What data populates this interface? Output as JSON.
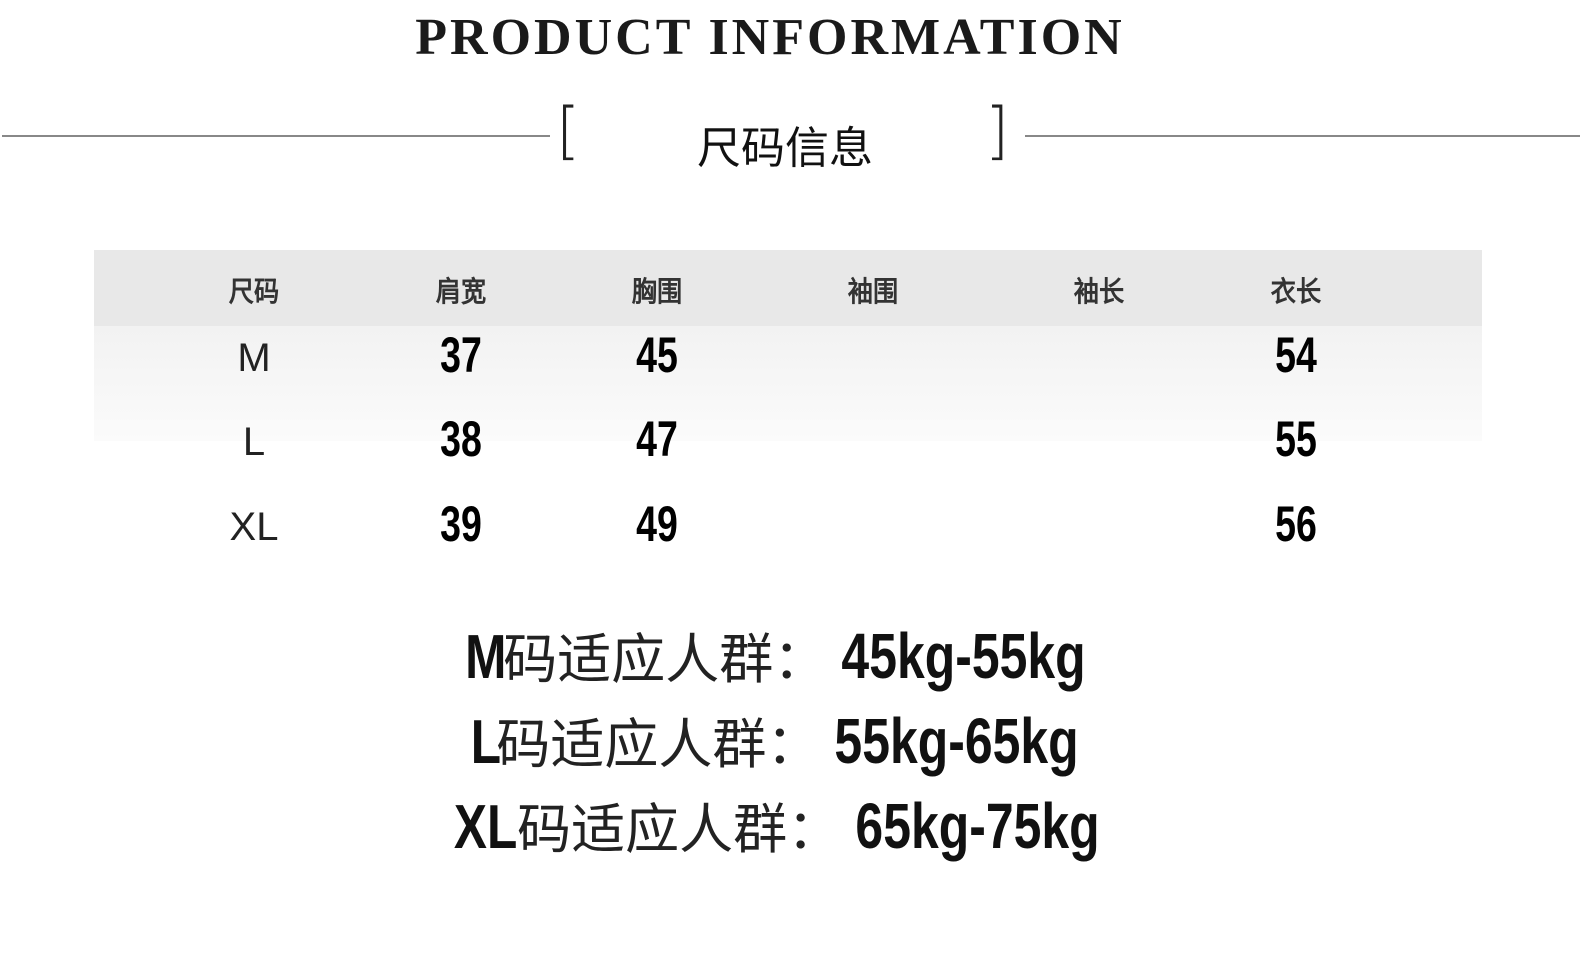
{
  "title": "PRODUCT INFORMATION",
  "subtitle": "尺码信息",
  "table": {
    "headers": [
      "尺码",
      "肩宽",
      "胸围",
      "袖围",
      "袖长",
      "衣长"
    ],
    "rows": [
      [
        "M",
        "37",
        "45",
        "",
        "",
        "54"
      ],
      [
        "L",
        "38",
        "47",
        "",
        "",
        "55"
      ],
      [
        "XL",
        "39",
        "49",
        "",
        "",
        "56"
      ]
    ]
  },
  "fit": [
    {
      "size": "M",
      "text": "码适应人群：",
      "range": "45kg-55kg"
    },
    {
      "size": "L",
      "text": "码适应人群：",
      "range": "55kg-65kg"
    },
    {
      "size": "XL",
      "text": "码适应人群：",
      "range": "65kg-75kg"
    }
  ]
}
